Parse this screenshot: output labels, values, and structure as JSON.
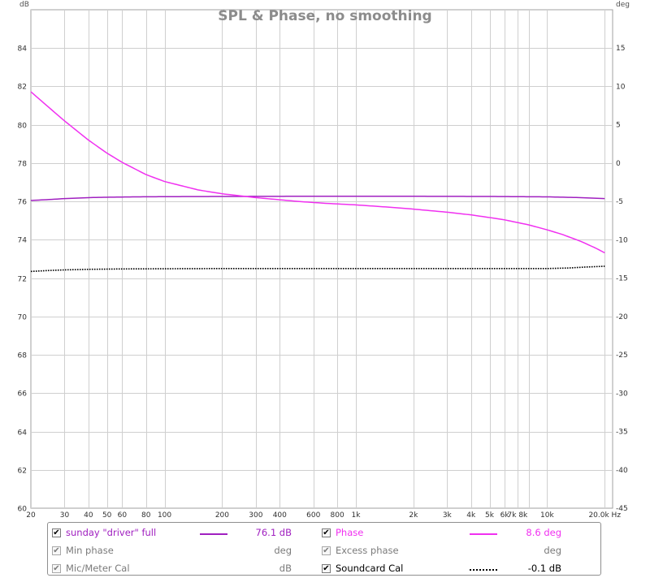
{
  "chart_data": {
    "type": "line",
    "title": "SPL & Phase, no smoothing",
    "x_scale": "log",
    "xlim": [
      20,
      22000
    ],
    "x_ticks": [
      20,
      30,
      40,
      50,
      60,
      80,
      100,
      200,
      300,
      400,
      600,
      800,
      1000,
      2000,
      3000,
      4000,
      5000,
      6000,
      7000,
      8000,
      10000,
      20000
    ],
    "x_tick_labels": [
      "20",
      "30",
      "40",
      "50",
      "60",
      "80",
      "100",
      "200",
      "300",
      "400",
      "600",
      "800",
      "1k",
      "2k",
      "3k",
      "4k",
      "5k",
      "6k",
      "7k 8k",
      "",
      "10k",
      "20.0k Hz"
    ],
    "ylabel": "dB",
    "ylim": [
      60,
      86
    ],
    "y_ticks": [
      60,
      62,
      64,
      66,
      68,
      70,
      72,
      74,
      76,
      78,
      80,
      82,
      84
    ],
    "y2label": "deg",
    "y2lim": [
      -45,
      20
    ],
    "y2_ticks": [
      -45,
      -40,
      -35,
      -30,
      -25,
      -20,
      -15,
      -10,
      -5,
      0,
      5,
      10,
      15
    ],
    "grid": true,
    "series": [
      {
        "name": "sunday \"driver\" full",
        "axis": "left",
        "color": "#a020c0",
        "x": [
          20,
          25,
          30,
          40,
          50,
          70,
          100,
          200,
          500,
          1000,
          2000,
          5000,
          10000,
          15000,
          20000
        ],
        "y": [
          76.05,
          76.1,
          76.15,
          76.2,
          76.22,
          76.24,
          76.25,
          76.26,
          76.27,
          76.27,
          76.27,
          76.26,
          76.24,
          76.2,
          76.15
        ]
      },
      {
        "name": "Phase",
        "axis": "right",
        "color": "#f030f0",
        "x": [
          20,
          25,
          30,
          40,
          50,
          60,
          80,
          100,
          150,
          200,
          300,
          500,
          700,
          1000,
          1500,
          2000,
          3000,
          4000,
          5000,
          6000,
          7000,
          8000,
          10000,
          12000,
          15000,
          18000,
          20000
        ],
        "y": [
          9.3,
          7.2,
          5.5,
          3.0,
          1.3,
          0.1,
          -1.5,
          -2.4,
          -3.5,
          -4.0,
          -4.5,
          -5.0,
          -5.25,
          -5.45,
          -5.75,
          -6.0,
          -6.4,
          -6.75,
          -7.1,
          -7.4,
          -7.75,
          -8.05,
          -8.7,
          -9.3,
          -10.2,
          -11.1,
          -11.7
        ]
      },
      {
        "name": "Soundcard Cal",
        "axis": "left",
        "color": "#000000",
        "dash": "dotted",
        "x": [
          20,
          25,
          30,
          40,
          60,
          100,
          200,
          1000,
          5000,
          10000,
          13000,
          16000,
          20000
        ],
        "y": [
          72.35,
          72.4,
          72.43,
          72.46,
          72.48,
          72.49,
          72.5,
          72.5,
          72.5,
          72.5,
          72.53,
          72.58,
          72.62
        ]
      }
    ]
  },
  "legend": [
    {
      "key": "sunday-driver-full",
      "label": "sunday \"driver\" full",
      "checked": true,
      "value": "76.1 dB",
      "color": "#a020c0",
      "dash": "solid",
      "active": true
    },
    {
      "key": "phase",
      "label": "Phase",
      "checked": true,
      "value": "8.6 deg",
      "color": "#f030f0",
      "dash": "solid",
      "active": true
    },
    {
      "key": "min-phase",
      "label": "Min phase",
      "checked": true,
      "value": "deg",
      "color": "#7a7a7a",
      "dash": "none",
      "active": false
    },
    {
      "key": "excess-phase",
      "label": "Excess phase",
      "checked": true,
      "value": "deg",
      "color": "#7a7a7a",
      "dash": "none",
      "active": false
    },
    {
      "key": "mic-meter-cal",
      "label": "Mic/Meter Cal",
      "checked": true,
      "value": "dB",
      "color": "#7a7a7a",
      "dash": "none",
      "active": false
    },
    {
      "key": "soundcard-cal",
      "label": "Soundcard Cal",
      "checked": true,
      "value": "-0.1 dB",
      "color": "#000000",
      "dash": "dotted",
      "active": true
    }
  ],
  "check_glyph": "✔"
}
